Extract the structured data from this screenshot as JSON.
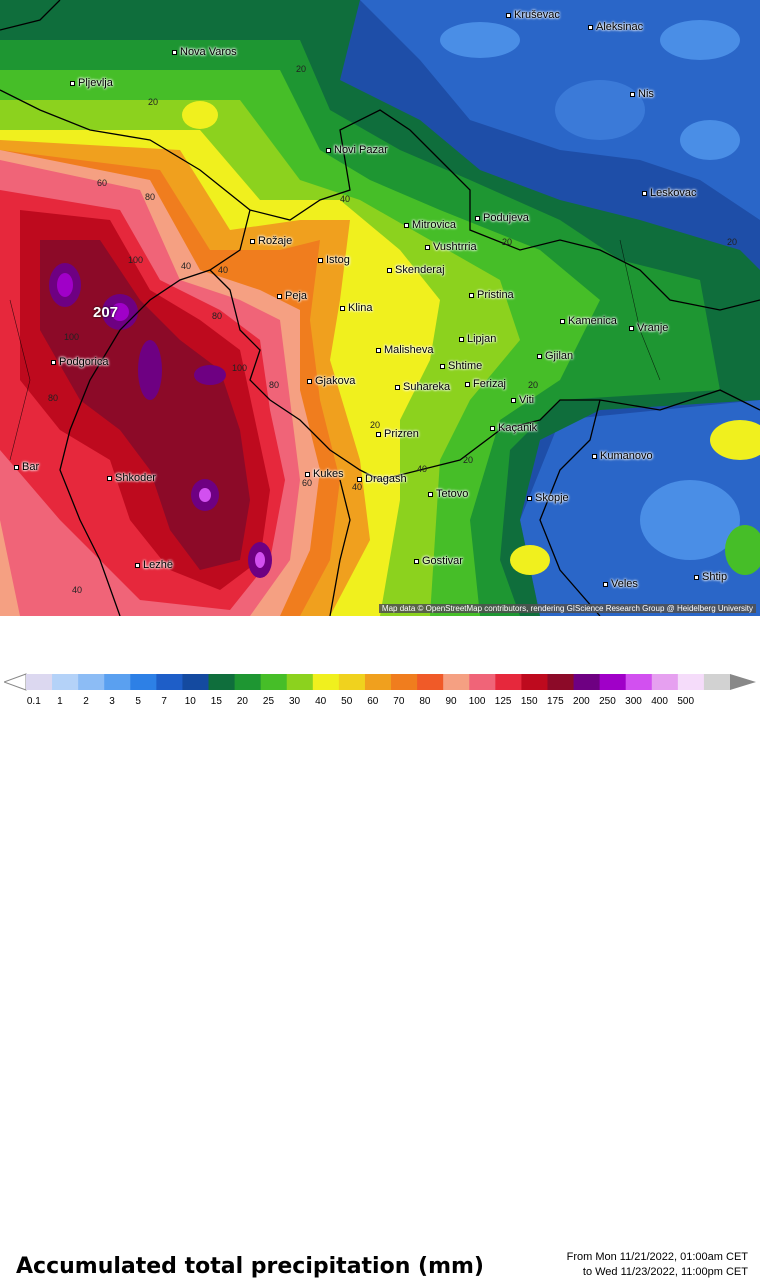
{
  "map": {
    "attribution": "Map data © OpenStreetMap contributors, rendering GIScience Research Group @ Heidelberg University",
    "max_label": "207",
    "cities": [
      {
        "name": "Kruševac"
      },
      {
        "name": "Aleksinac"
      },
      {
        "name": "Nova Varos"
      },
      {
        "name": "Pljevlja"
      },
      {
        "name": "Nis"
      },
      {
        "name": "Novi Pazar"
      },
      {
        "name": "Leskovac"
      },
      {
        "name": "Mitrovica"
      },
      {
        "name": "Podujeva"
      },
      {
        "name": "Rožaje"
      },
      {
        "name": "Vushtrria"
      },
      {
        "name": "Istog"
      },
      {
        "name": "Skenderaj"
      },
      {
        "name": "Peja"
      },
      {
        "name": "Pristina"
      },
      {
        "name": "Klina"
      },
      {
        "name": "Kamenica"
      },
      {
        "name": "Vranje"
      },
      {
        "name": "Lipjan"
      },
      {
        "name": "Malisheva"
      },
      {
        "name": "Gjilan"
      },
      {
        "name": "Podgorica"
      },
      {
        "name": "Shtime"
      },
      {
        "name": "Gjakova"
      },
      {
        "name": "Ferizaj"
      },
      {
        "name": "Suhareka"
      },
      {
        "name": "Viti"
      },
      {
        "name": "Kaçanik"
      },
      {
        "name": "Prizren"
      },
      {
        "name": "Bar"
      },
      {
        "name": "Kumanovo"
      },
      {
        "name": "Shkoder"
      },
      {
        "name": "Kukes"
      },
      {
        "name": "Dragash"
      },
      {
        "name": "Tetovo"
      },
      {
        "name": "Skopje"
      },
      {
        "name": "Gostivar"
      },
      {
        "name": "Lezhë"
      },
      {
        "name": "Veles"
      },
      {
        "name": "Shtip"
      }
    ],
    "contour_labels": [
      "20",
      "20",
      "20",
      "20",
      "40",
      "40",
      "40",
      "20",
      "60",
      "80",
      "100",
      "100",
      "100",
      "80",
      "80",
      "80",
      "60",
      "40",
      "40",
      "20",
      "20",
      "40"
    ]
  },
  "legend": {
    "title": "Accumulated total precipitation (mm)",
    "period_from": "From Mon 11/21/2022, 01:00am CET",
    "period_to": "to Wed 11/23/2022, 11:00pm CET",
    "ticks": [
      "0.1",
      "1",
      "2",
      "3",
      "5",
      "7",
      "10",
      "15",
      "20",
      "25",
      "30",
      "40",
      "50",
      "60",
      "70",
      "80",
      "90",
      "100",
      "125",
      "150",
      "175",
      "200",
      "250",
      "300",
      "400",
      "500"
    ],
    "colors": [
      "#dcd8f0",
      "#b4d2f8",
      "#8cbcf5",
      "#5aa0f0",
      "#2d80e6",
      "#1e5ec8",
      "#144aa0",
      "#0f6e3c",
      "#1e9632",
      "#46be28",
      "#8cd21e",
      "#f0f01e",
      "#f0d21e",
      "#f0a01e",
      "#f07d1e",
      "#f05a28",
      "#f5a082",
      "#f06478",
      "#e6283c",
      "#be0a1e",
      "#8c0a28",
      "#6e0082",
      "#a000c8",
      "#d250f0",
      "#e6a0f0",
      "#f5dcfa",
      "#d2d2d2"
    ]
  }
}
